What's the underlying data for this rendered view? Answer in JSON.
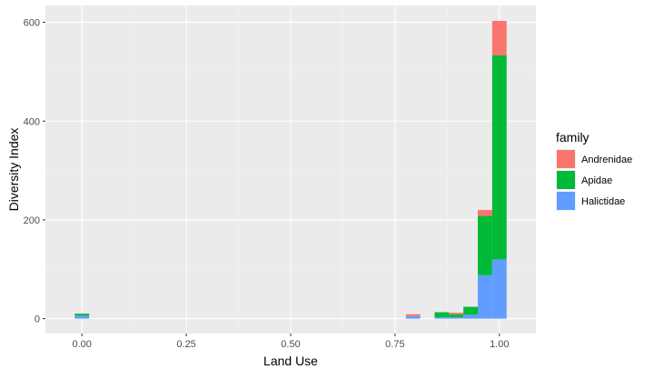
{
  "chart_data": {
    "type": "bar",
    "stacked": true,
    "xlabel": "Land Use",
    "ylabel": "Diversity Index",
    "xlim": [
      -0.0875,
      1.0875
    ],
    "ylim": [
      -30.2,
      634.2
    ],
    "x_ticks": [
      0.0,
      0.25,
      0.5,
      0.75,
      1.0
    ],
    "x_tick_labels": [
      "0.00",
      "0.25",
      "0.50",
      "0.75",
      "1.00"
    ],
    "y_ticks": [
      0,
      200,
      400,
      600
    ],
    "y_tick_labels": [
      "0",
      "200",
      "400",
      "600"
    ],
    "grid": true,
    "bin_width": 0.0345,
    "bins": [
      0.0,
      0.7931,
      0.8621,
      0.8966,
      0.931,
      0.9655,
      1.0
    ],
    "legend": {
      "title": "family",
      "position": "right",
      "entries": [
        {
          "label": "Andrenidae",
          "color": "#F8766D"
        },
        {
          "label": "Apidae",
          "color": "#00BA38"
        },
        {
          "label": "Halictidae",
          "color": "#619CFF"
        }
      ]
    },
    "series": [
      {
        "name": "Halictidae",
        "color": "#619CFF",
        "values": [
          6,
          5,
          3,
          3,
          8,
          88,
          120
        ]
      },
      {
        "name": "Apidae",
        "color": "#00BA38",
        "values": [
          4,
          0,
          10,
          6,
          16,
          120,
          413
        ]
      },
      {
        "name": "Andrenidae",
        "color": "#F8766D",
        "values": [
          0,
          4,
          0,
          3,
          0,
          12,
          70
        ]
      }
    ]
  }
}
